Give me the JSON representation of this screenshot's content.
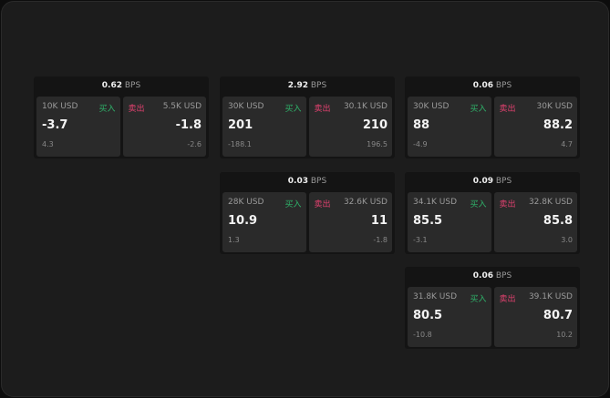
{
  "unit": "BPS",
  "colors": {
    "buy": "#2fb36a",
    "sell": "#e0416f"
  },
  "labels": {
    "buy": "买入",
    "sell": "卖出"
  },
  "cards": [
    {
      "spread": "0.62",
      "bid": {
        "size": "10K USD",
        "price": "-3.7",
        "change": "4.3"
      },
      "ask": {
        "size": "5.5K USD",
        "price": "-1.8",
        "change": "-2.6"
      }
    },
    {
      "spread": "2.92",
      "bid": {
        "size": "30K USD",
        "price": "201",
        "change": "-188.1"
      },
      "ask": {
        "size": "30.1K USD",
        "price": "210",
        "change": "196.5"
      }
    },
    {
      "spread": "0.06",
      "bid": {
        "size": "30K USD",
        "price": "88",
        "change": "-4.9"
      },
      "ask": {
        "size": "30K USD",
        "price": "88.2",
        "change": "4.7"
      }
    },
    {
      "spread": "0.03",
      "bid": {
        "size": "28K USD",
        "price": "10.9",
        "change": "1.3"
      },
      "ask": {
        "size": "32.6K USD",
        "price": "11",
        "change": "-1.8"
      }
    },
    {
      "spread": "0.09",
      "bid": {
        "size": "34.1K USD",
        "price": "85.5",
        "change": "-3.1"
      },
      "ask": {
        "size": "32.8K USD",
        "price": "85.8",
        "change": "3.0"
      }
    },
    {
      "spread": "0.06",
      "bid": {
        "size": "31.8K USD",
        "price": "80.5",
        "change": "-10.8"
      },
      "ask": {
        "size": "39.1K USD",
        "price": "80.7",
        "change": "10.2"
      }
    }
  ]
}
